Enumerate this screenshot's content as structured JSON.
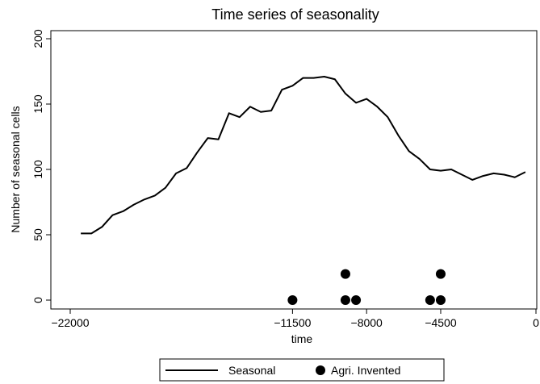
{
  "chart_data": {
    "type": "line",
    "title": "Time series of seasonality",
    "x_label": "time",
    "y_label": "Number of seasonal cells",
    "xlim": [
      -22000,
      0
    ],
    "ylim": [
      0,
      200
    ],
    "xticks": [
      {
        "value": -22000,
        "label": "−22000"
      },
      {
        "value": -11500,
        "label": "−11500"
      },
      {
        "value": -8000,
        "label": "−8000"
      },
      {
        "value": -4500,
        "label": "−4500"
      },
      0
    ],
    "yticks": [
      0,
      50,
      100,
      150,
      200
    ],
    "grid": false,
    "legend": "bottom",
    "series": [
      {
        "name": "Seasonal",
        "type": "line",
        "color": "#000000",
        "x": [
          -21500,
          -21000,
          -20500,
          -20000,
          -19500,
          -19000,
          -18500,
          -18000,
          -17500,
          -17000,
          -16500,
          -16000,
          -15500,
          -15000,
          -14500,
          -14000,
          -13500,
          -13000,
          -12500,
          -12000,
          -11500,
          -11000,
          -10500,
          -10000,
          -9500,
          -9000,
          -8500,
          -8000,
          -7500,
          -7000,
          -6500,
          -6000,
          -5500,
          -5000,
          -4500,
          -4000,
          -3500,
          -3000,
          -2500,
          -2000,
          -1500,
          -1000,
          -500
        ],
        "values": [
          51,
          51,
          56,
          65,
          68,
          73,
          77,
          80,
          86,
          97,
          101,
          113,
          124,
          123,
          143,
          140,
          148,
          144,
          145,
          161,
          164,
          170,
          170,
          171,
          169,
          158,
          151,
          154,
          148,
          140,
          126,
          114,
          108,
          100,
          99,
          100,
          96,
          92,
          95,
          97,
          96,
          94,
          98
        ]
      },
      {
        "name": "Agri. Invented",
        "type": "scatter",
        "color": "#000000",
        "x": [
          -11500,
          -9000,
          -9000,
          -8500,
          -5000,
          -4500,
          -4500
        ],
        "values": [
          0,
          20,
          0,
          0,
          0,
          20,
          0
        ]
      }
    ]
  }
}
